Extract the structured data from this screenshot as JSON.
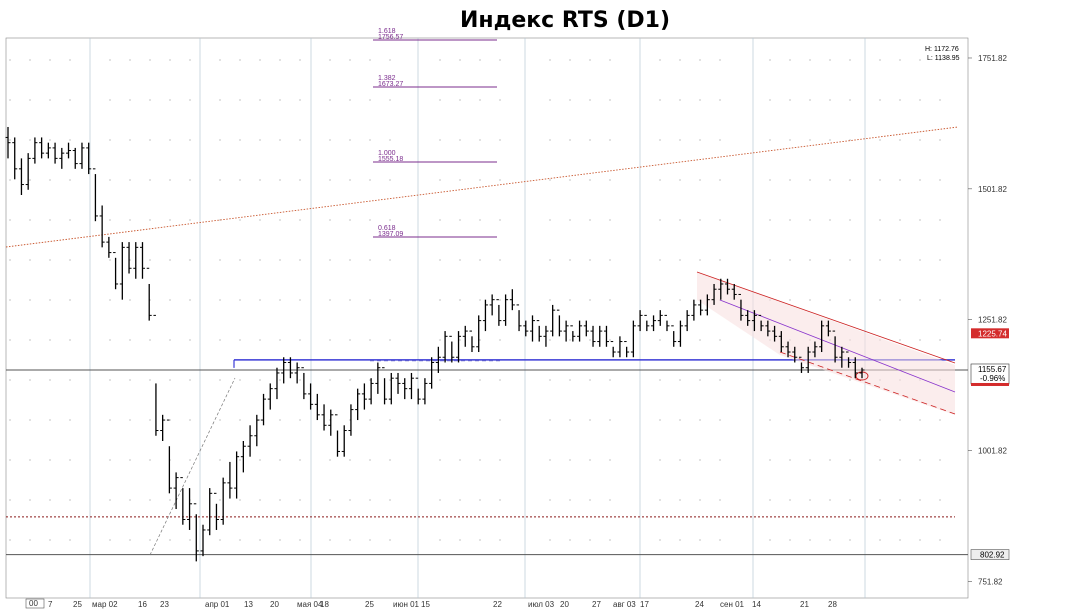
{
  "title": "Индекс RTS (D1)",
  "chart_data": {
    "type": "ohlc",
    "title": "Индекс RTS (D1)",
    "y_axis": {
      "ticks": [
        "1751.82",
        "1501.82",
        "1251.82",
        "1001.82",
        "751.82"
      ],
      "tick_values": [
        1751.82,
        1501.82,
        1251.82,
        1001.82,
        751.82
      ],
      "range": [
        720,
        1790
      ],
      "position": "right"
    },
    "x_axis": {
      "ticks": [
        "7",
        "25",
        "мар 02",
        "16",
        "23",
        "апр 01",
        "13",
        "20",
        "мая 04",
        "18",
        "25",
        "июн 01",
        "15",
        "22",
        "июл 03",
        "20",
        "27",
        "авг 03",
        "17",
        "24",
        "сен 01",
        "14",
        "21",
        "28"
      ],
      "first_label": "00"
    },
    "info": {
      "high": "H: 1172.76",
      "low": "L: 1138.95"
    },
    "price_labels": {
      "current": "1155.67",
      "change": "-0.96%",
      "level_red": "1225.74",
      "bottom_level": "802.92"
    },
    "fibonacci": [
      {
        "ratio": "1.618",
        "price": "1756.57"
      },
      {
        "ratio": "1.382",
        "price": "1673.27"
      },
      {
        "ratio": "1.000",
        "price": "1555.18"
      },
      {
        "ratio": "0.618",
        "price": "1397.09"
      }
    ],
    "horizontal_levels": [
      {
        "name": "support-blue",
        "value": 1175,
        "color": "#3b3bd6",
        "style": "solid"
      },
      {
        "name": "current-price",
        "value": 1155.67,
        "color": "#555555",
        "style": "solid"
      },
      {
        "name": "red-dotted",
        "value": 875,
        "color": "#8b1a1a",
        "style": "dotted"
      },
      {
        "name": "bottom-level",
        "value": 802.92,
        "color": "#555555",
        "style": "solid"
      }
    ],
    "colors": {
      "bars": "#000000",
      "grid": "#b7c9d6",
      "fib": "#7b2d8e",
      "trendline": "#c8552c",
      "channel_red": "#cc2222",
      "channel_mid": "#8833cc"
    },
    "bars": [
      [
        1600,
        1620,
        1560,
        1590
      ],
      [
        1590,
        1600,
        1520,
        1540
      ],
      [
        1540,
        1560,
        1490,
        1510
      ],
      [
        1510,
        1570,
        1500,
        1560
      ],
      [
        1560,
        1600,
        1550,
        1590
      ],
      [
        1590,
        1600,
        1560,
        1570
      ],
      [
        1570,
        1590,
        1560,
        1580
      ],
      [
        1580,
        1590,
        1550,
        1560
      ],
      [
        1560,
        1580,
        1540,
        1570
      ],
      [
        1570,
        1590,
        1560,
        1575
      ],
      [
        1575,
        1580,
        1540,
        1550
      ],
      [
        1550,
        1590,
        1540,
        1580
      ],
      [
        1580,
        1590,
        1530,
        1540
      ],
      [
        1540,
        1530,
        1440,
        1450
      ],
      [
        1450,
        1470,
        1390,
        1400
      ],
      [
        1400,
        1410,
        1370,
        1380
      ],
      [
        1380,
        1370,
        1310,
        1320
      ],
      [
        1320,
        1400,
        1290,
        1390
      ],
      [
        1390,
        1400,
        1340,
        1350
      ],
      [
        1350,
        1400,
        1330,
        1390
      ],
      [
        1390,
        1400,
        1330,
        1350
      ],
      [
        1350,
        1320,
        1250,
        1260
      ],
      [
        1260,
        1130,
        1030,
        1040
      ],
      [
        1040,
        1070,
        1020,
        1060
      ],
      [
        1060,
        1010,
        920,
        930
      ],
      [
        930,
        960,
        890,
        950
      ],
      [
        950,
        930,
        860,
        870
      ],
      [
        870,
        930,
        850,
        900
      ],
      [
        900,
        880,
        790,
        810
      ],
      [
        810,
        860,
        800,
        850
      ],
      [
        850,
        930,
        840,
        920
      ],
      [
        920,
        900,
        850,
        870
      ],
      [
        870,
        950,
        860,
        940
      ],
      [
        940,
        980,
        910,
        930
      ],
      [
        930,
        1000,
        910,
        990
      ],
      [
        990,
        1020,
        960,
        1010
      ],
      [
        1010,
        1050,
        990,
        1030
      ],
      [
        1030,
        1070,
        1010,
        1060
      ],
      [
        1060,
        1110,
        1050,
        1100
      ],
      [
        1100,
        1130,
        1080,
        1120
      ],
      [
        1120,
        1160,
        1100,
        1150
      ],
      [
        1150,
        1180,
        1130,
        1170
      ],
      [
        1170,
        1180,
        1140,
        1150
      ],
      [
        1150,
        1170,
        1130,
        1160
      ],
      [
        1160,
        1150,
        1100,
        1110
      ],
      [
        1110,
        1130,
        1080,
        1090
      ],
      [
        1090,
        1110,
        1060,
        1070
      ],
      [
        1070,
        1090,
        1040,
        1050
      ],
      [
        1050,
        1080,
        1030,
        1070
      ],
      [
        1070,
        1040,
        990,
        1000
      ],
      [
        1000,
        1050,
        990,
        1040
      ],
      [
        1040,
        1090,
        1030,
        1080
      ],
      [
        1080,
        1120,
        1060,
        1110
      ],
      [
        1110,
        1130,
        1080,
        1100
      ],
      [
        1100,
        1140,
        1090,
        1130
      ],
      [
        1130,
        1170,
        1110,
        1160
      ],
      [
        1160,
        1140,
        1090,
        1100
      ],
      [
        1100,
        1150,
        1090,
        1140
      ],
      [
        1140,
        1150,
        1110,
        1130
      ],
      [
        1130,
        1140,
        1100,
        1120
      ],
      [
        1120,
        1150,
        1100,
        1140
      ],
      [
        1140,
        1120,
        1090,
        1100
      ],
      [
        1100,
        1140,
        1090,
        1130
      ],
      [
        1130,
        1180,
        1120,
        1170
      ],
      [
        1170,
        1200,
        1150,
        1180
      ],
      [
        1180,
        1230,
        1170,
        1220
      ],
      [
        1220,
        1210,
        1170,
        1180
      ],
      [
        1180,
        1230,
        1170,
        1220
      ],
      [
        1220,
        1240,
        1200,
        1230
      ],
      [
        1230,
        1220,
        1190,
        1200
      ],
      [
        1200,
        1260,
        1190,
        1250
      ],
      [
        1250,
        1290,
        1230,
        1280
      ],
      [
        1280,
        1300,
        1260,
        1290
      ],
      [
        1290,
        1280,
        1240,
        1250
      ],
      [
        1250,
        1300,
        1240,
        1290
      ],
      [
        1290,
        1310,
        1270,
        1280
      ],
      [
        1280,
        1270,
        1230,
        1240
      ],
      [
        1240,
        1250,
        1220,
        1230
      ],
      [
        1230,
        1260,
        1210,
        1250
      ],
      [
        1250,
        1240,
        1210,
        1220
      ],
      [
        1220,
        1240,
        1200,
        1230
      ],
      [
        1230,
        1280,
        1220,
        1270
      ],
      [
        1270,
        1260,
        1220,
        1230
      ],
      [
        1230,
        1250,
        1210,
        1240
      ],
      [
        1240,
        1230,
        1210,
        1220
      ],
      [
        1220,
        1250,
        1210,
        1240
      ],
      [
        1240,
        1250,
        1220,
        1230
      ],
      [
        1230,
        1240,
        1200,
        1210
      ],
      [
        1210,
        1240,
        1200,
        1230
      ],
      [
        1230,
        1240,
        1200,
        1210
      ],
      [
        1210,
        1200,
        1180,
        1190
      ],
      [
        1190,
        1220,
        1180,
        1210
      ],
      [
        1210,
        1200,
        1180,
        1190
      ],
      [
        1190,
        1250,
        1180,
        1240
      ],
      [
        1240,
        1270,
        1230,
        1260
      ],
      [
        1260,
        1250,
        1230,
        1240
      ],
      [
        1240,
        1260,
        1230,
        1250
      ],
      [
        1250,
        1270,
        1240,
        1260
      ],
      [
        1260,
        1250,
        1230,
        1240
      ],
      [
        1240,
        1230,
        1200,
        1210
      ],
      [
        1210,
        1250,
        1200,
        1240
      ],
      [
        1240,
        1270,
        1230,
        1260
      ],
      [
        1260,
        1290,
        1250,
        1280
      ],
      [
        1280,
        1290,
        1260,
        1270
      ],
      [
        1270,
        1300,
        1260,
        1290
      ],
      [
        1290,
        1320,
        1280,
        1310
      ],
      [
        1310,
        1330,
        1290,
        1320
      ],
      [
        1320,
        1330,
        1300,
        1310
      ],
      [
        1310,
        1320,
        1290,
        1300
      ],
      [
        1300,
        1290,
        1250,
        1260
      ],
      [
        1260,
        1270,
        1240,
        1250
      ],
      [
        1250,
        1270,
        1230,
        1260
      ],
      [
        1260,
        1250,
        1230,
        1240
      ],
      [
        1240,
        1250,
        1220,
        1230
      ],
      [
        1230,
        1240,
        1210,
        1220
      ],
      [
        1220,
        1230,
        1190,
        1200
      ],
      [
        1200,
        1210,
        1180,
        1190
      ],
      [
        1190,
        1200,
        1170,
        1180
      ],
      [
        1180,
        1170,
        1150,
        1160
      ],
      [
        1160,
        1200,
        1150,
        1190
      ],
      [
        1190,
        1210,
        1180,
        1200
      ],
      [
        1200,
        1250,
        1190,
        1240
      ],
      [
        1240,
        1250,
        1220,
        1230
      ],
      [
        1230,
        1220,
        1170,
        1180
      ],
      [
        1180,
        1200,
        1160,
        1190
      ],
      [
        1190,
        1180,
        1160,
        1170
      ],
      [
        1170,
        1180,
        1140,
        1150
      ],
      [
        1150,
        1160,
        1140,
        1155.67
      ]
    ]
  }
}
